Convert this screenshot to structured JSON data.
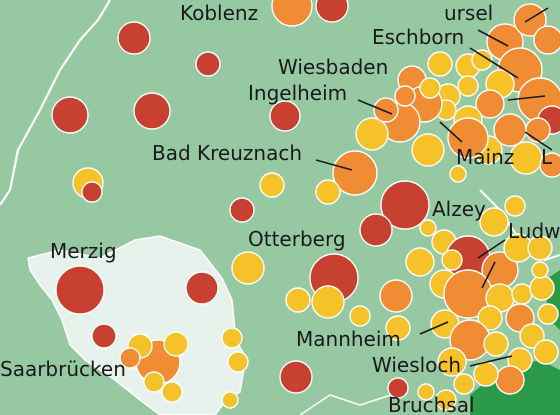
{
  "colors": {
    "land": "#96c8a2",
    "saarland": "#e8f2ec",
    "border": "#ffffff",
    "forest": "#2a9a48",
    "large_city": "#c8402f",
    "medium_city": "#ef8c34",
    "small_city": "#f6c22a"
  },
  "labels": {
    "koblenz": "Koblenz",
    "ursel": "ursel",
    "eschborn": "Eschborn",
    "wiesbaden": "Wiesbaden",
    "ingelheim": "Ingelheim",
    "mainz": "Mainz",
    "bad_kreuznach": "Bad Kreuznach",
    "alzey": "Alzey",
    "ludw": "Ludw",
    "otterberg": "Otterberg",
    "merzig": "Merzig",
    "mannheim": "Mannheim",
    "wiesloch": "Wiesloch",
    "saarbruecken": "Saarbrücken",
    "bruchsal": "Bruchsal",
    "edge_l": "L"
  },
  "icons": {
    "large": "red-circle-icon",
    "medium": "orange-circle-icon",
    "small": "yellow-circle-icon"
  }
}
